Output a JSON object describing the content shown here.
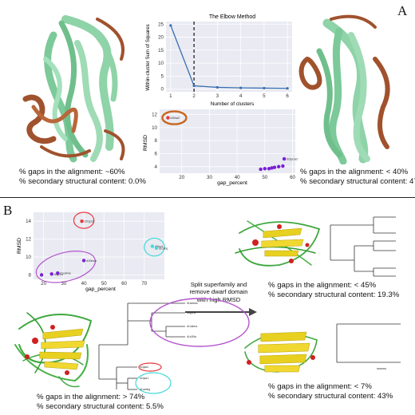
{
  "panel_a": {
    "letter": "A",
    "left_caption": {
      "gaps": "% gaps in the alignment:  ~60%",
      "ss": "% secondary structural content: 0.0%"
    },
    "right_caption": {
      "gaps": "% gaps in the alignment:  < 40%",
      "ss": "% secondary structural content: 47.7%"
    }
  },
  "panel_b": {
    "letter": "B",
    "split_text": [
      "Split superfamily and",
      "remove dwarf domain",
      "with high RMSD"
    ],
    "bottom_left_caption": {
      "gaps": "% gaps in the alignment:  > 74%",
      "ss": "% secondary structural content: 5.5%"
    },
    "right_top_caption": {
      "gaps": "% gaps in the alignment:  < 45%",
      "ss": "% secondary structural content: 19.3%"
    },
    "right_bottom_caption": {
      "gaps": "% gaps in the alignment:  < 7%",
      "ss": "% secondary structural content: 43%"
    },
    "tree_labels": [
      "d1abwsa",
      "d4g0ha",
      "d1oabna",
      "d1c0i5a",
      "d2qaa1",
      "d2qsa1",
      "d1oedbg"
    ]
  },
  "colors": {
    "helix_green": "#8fd3a8",
    "helix_brown": "#a0522d",
    "cluster_red": "#e8383c",
    "cluster_purple": "#b455cc",
    "cluster_cyan": "#48d8d8",
    "point_purple": "#7a1fd6",
    "line_blue": "#3a6fb0",
    "plot_bg": "#e9eaf2"
  },
  "chart_data": [
    {
      "type": "line",
      "title": "The Elbow Method",
      "xlabel": "Number of clusters",
      "ylabel": "Within-cluster Sum of Squares",
      "x": [
        1,
        2,
        3,
        4,
        5,
        6
      ],
      "values": [
        24.5,
        1.3,
        0.7,
        0.5,
        0.4,
        0.3
      ],
      "xlim": [
        0.8,
        6.2
      ],
      "ylim": [
        -1,
        26
      ],
      "xticks": [
        1,
        2,
        3,
        4,
        5,
        6
      ],
      "yticks": [
        0,
        5,
        10,
        15,
        20,
        25
      ],
      "elbow_x": 2,
      "grid": true
    },
    {
      "type": "scatter",
      "xlabel": "gap_percent",
      "ylabel": "RMSD",
      "xlim": [
        12,
        61
      ],
      "ylim": [
        3,
        12.8
      ],
      "xticks": [
        20,
        30,
        40,
        50,
        60
      ],
      "yticks": [
        4,
        6,
        8,
        10,
        12
      ],
      "points": [
        {
          "x": 15.0,
          "y": 11.5,
          "label": "d1ifsa2",
          "color": "#e8383c"
        },
        {
          "x": 48.5,
          "y": 3.6,
          "label": "",
          "color": "#7a1fd6"
        },
        {
          "x": 50.0,
          "y": 3.7,
          "label": "",
          "color": "#7a1fd6"
        },
        {
          "x": 51.5,
          "y": 3.7,
          "label": "",
          "color": "#7a1fd6"
        },
        {
          "x": 52.5,
          "y": 3.8,
          "label": "",
          "color": "#7a1fd6"
        },
        {
          "x": 53.5,
          "y": 3.9,
          "label": "",
          "color": "#7a1fd6"
        },
        {
          "x": 55.0,
          "y": 4.0,
          "label": "",
          "color": "#7a1fd6"
        },
        {
          "x": 56.5,
          "y": 4.1,
          "label": "",
          "color": "#7a1fd6"
        },
        {
          "x": 57.0,
          "y": 5.2,
          "label": "d2qa1a2",
          "color": "#7a1fd6"
        }
      ],
      "highlight": {
        "label": "d1ifsa2",
        "x": 15.0,
        "y": 11.5,
        "color": "#c8651b"
      },
      "grid": true
    },
    {
      "type": "scatter",
      "xlabel": "gap_percent",
      "ylabel": "RMSD",
      "xlim": [
        15,
        80
      ],
      "ylim": [
        7.5,
        15
      ],
      "xticks": [
        20,
        30,
        40,
        50,
        60,
        70
      ],
      "yticks": [
        8,
        10,
        12,
        14
      ],
      "points": [
        {
          "x": 39,
          "y": 14.0,
          "label": "d2bgsb1",
          "color": "#e8383c"
        },
        {
          "x": 40,
          "y": 9.6,
          "label": "d1l0mca",
          "color": "#7a1fd6"
        },
        {
          "x": 19,
          "y": 8.0,
          "label": "",
          "color": "#7a1fd6"
        },
        {
          "x": 24,
          "y": 8.1,
          "label": "d4g0ha",
          "color": "#7a1fd6"
        },
        {
          "x": 27,
          "y": 8.2,
          "label": "d1oabna",
          "color": "#7a1fd6"
        },
        {
          "x": 74,
          "y": 11.2,
          "label": "d2jwv1",
          "color": "#48d8d8"
        },
        {
          "x": 76,
          "y": 11.0,
          "label": "d1o9bq",
          "color": "#48d8d8"
        }
      ],
      "clusters": [
        {
          "color": "#e8383c",
          "cx": 40,
          "cy": 14.1,
          "rx": 5,
          "ry": 0.9
        },
        {
          "color": "#b455cc",
          "cx": 31,
          "cy": 8.9,
          "rx": 15,
          "ry": 1.6
        },
        {
          "color": "#48d8d8",
          "cx": 75,
          "cy": 11.1,
          "rx": 5,
          "ry": 1.0
        }
      ],
      "grid": true
    }
  ]
}
